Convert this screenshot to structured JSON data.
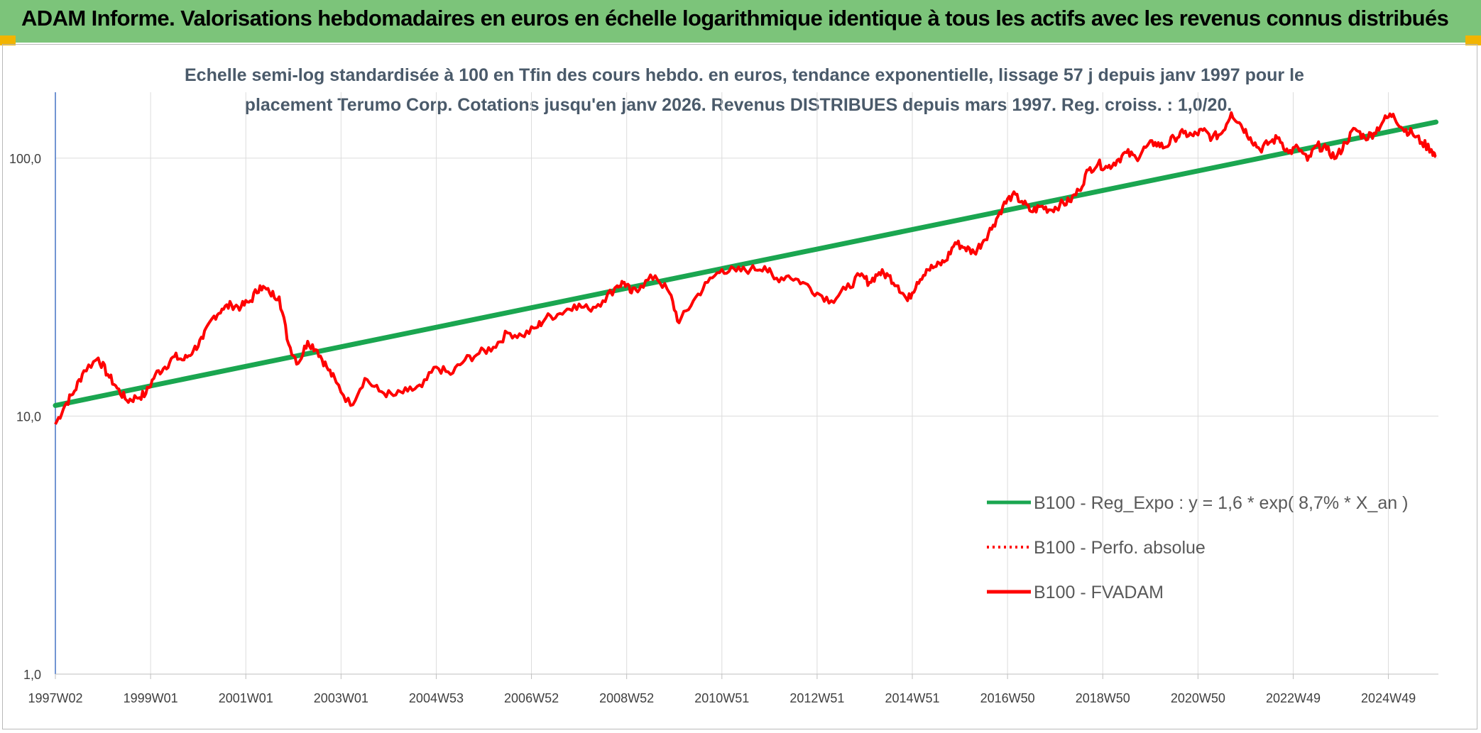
{
  "header": {
    "title": "ADAM Informe. Valorisations hebdomadaires en euros en échelle logarithmique identique à tous les actifs avec les revenus connus distribués"
  },
  "chart_data": {
    "type": "line",
    "title_lines": [
      "Echelle semi-log standardisée à 100 en Tfin des cours hebdo. en euros, tendance exponentielle, lissage 57 j depuis janv 1997 pour le",
      "placement Terumo Corp. Cotations jusqu'en janv 2026. Revenus DISTRIBUES depuis mars 1997. Reg. croiss. : 1,0/20."
    ],
    "y_scale": "log",
    "ylim": [
      1,
      180
    ],
    "y_ticks": [
      {
        "value": 1,
        "label": "1,0"
      },
      {
        "value": 10,
        "label": "10,0"
      },
      {
        "value": 100,
        "label": "100,0"
      }
    ],
    "xlim": [
      1997.0,
      2026.05
    ],
    "x_ticks": [
      {
        "value": 1997.0,
        "label": "1997W02"
      },
      {
        "value": 1999.0,
        "label": "1999W01"
      },
      {
        "value": 2001.0,
        "label": "2001W01"
      },
      {
        "value": 2003.0,
        "label": "2003W01"
      },
      {
        "value": 2005.0,
        "label": "2004W53"
      },
      {
        "value": 2007.0,
        "label": "2006W52"
      },
      {
        "value": 2009.0,
        "label": "2008W52"
      },
      {
        "value": 2011.0,
        "label": "2010W51"
      },
      {
        "value": 2013.0,
        "label": "2012W51"
      },
      {
        "value": 2015.0,
        "label": "2014W51"
      },
      {
        "value": 2017.0,
        "label": "2016W50"
      },
      {
        "value": 2019.0,
        "label": "2018W50"
      },
      {
        "value": 2021.0,
        "label": "2020W50"
      },
      {
        "value": 2023.0,
        "label": "2022W49"
      },
      {
        "value": 2025.0,
        "label": "2024W49"
      }
    ],
    "grid": {
      "vertical": true,
      "horizontal": true
    },
    "legend_position": "bottom-right",
    "series": [
      {
        "name": "B100 - Reg_Expo : y = 1,6 * exp( 8,7% *  X_an )",
        "color": "#1aa650",
        "style": "solid",
        "x": [
          1997.0,
          2026.0
        ],
        "y": [
          11.0,
          138.0
        ]
      },
      {
        "name": "B100 - Perfo. absolue",
        "color": "#ff0000",
        "style": "dotted",
        "x": [],
        "y": []
      },
      {
        "name": "B100 - FVADAM",
        "color": "#ff0000",
        "style": "solid",
        "x": [
          1997.0,
          1997.2,
          1997.4,
          1997.6,
          1997.9,
          1998.1,
          1998.3,
          1998.5,
          1998.7,
          1998.9,
          1999.1,
          1999.3,
          1999.5,
          1999.7,
          1999.9,
          2000.1,
          2000.3,
          2000.5,
          2000.7,
          2000.9,
          2001.1,
          2001.3,
          2001.5,
          2001.7,
          2001.9,
          2002.1,
          2002.3,
          2002.5,
          2002.7,
          2002.9,
          2003.2,
          2003.5,
          2003.8,
          2004.1,
          2004.4,
          2004.7,
          2005.0,
          2005.3,
          2005.6,
          2005.9,
          2006.2,
          2006.5,
          2006.8,
          2007.1,
          2007.3,
          2007.6,
          2007.9,
          2008.2,
          2008.5,
          2008.8,
          2008.95,
          2009.1,
          2009.3,
          2009.6,
          2009.9,
          2010.1,
          2010.4,
          2010.7,
          2011.0,
          2011.3,
          2011.6,
          2011.9,
          2012.1,
          2012.4,
          2012.7,
          2013.0,
          2013.3,
          2013.6,
          2013.9,
          2014.1,
          2014.3,
          2014.5,
          2014.7,
          2014.9,
          2015.1,
          2015.3,
          2015.5,
          2015.7,
          2015.9,
          2016.1,
          2016.3,
          2016.5,
          2016.7,
          2016.9,
          2017.1,
          2017.3,
          2017.5,
          2017.7,
          2017.9,
          2018.1,
          2018.3,
          2018.5,
          2018.7,
          2018.9,
          2019.1,
          2019.3,
          2019.5,
          2019.7,
          2019.9,
          2020.1,
          2020.3,
          2020.5,
          2020.7,
          2020.9,
          2021.1,
          2021.3,
          2021.5,
          2021.7,
          2021.9,
          2022.1,
          2022.3,
          2022.5,
          2022.7,
          2022.9,
          2023.1,
          2023.3,
          2023.5,
          2023.7,
          2023.9,
          2024.1,
          2024.3,
          2024.5,
          2024.7,
          2024.9,
          2025.1,
          2025.3,
          2025.5,
          2025.7,
          2025.9,
          2026.0
        ],
        "y": [
          9.3,
          11.0,
          12.5,
          15.0,
          16.8,
          14.5,
          12.8,
          11.5,
          11.8,
          12.2,
          14.5,
          15.5,
          17.0,
          16.5,
          18.0,
          20.0,
          24.0,
          26.0,
          27.0,
          26.5,
          28.0,
          32.0,
          30.0,
          29.0,
          19.0,
          16.0,
          19.5,
          18.0,
          15.5,
          13.5,
          11.0,
          14.0,
          12.5,
          12.0,
          12.5,
          13.0,
          15.5,
          14.5,
          16.5,
          17.5,
          18.5,
          21.0,
          20.5,
          22.0,
          24.0,
          25.0,
          27.0,
          26.0,
          28.0,
          32.0,
          33.0,
          30.0,
          32.0,
          35.0,
          30.0,
          23.0,
          28.0,
          33.0,
          37.0,
          36.5,
          37.0,
          38.0,
          34.0,
          35.0,
          33.0,
          30.0,
          28.0,
          31.0,
          35.0,
          33.0,
          36.0,
          35.0,
          32.0,
          28.0,
          33.0,
          37.0,
          38.0,
          40.0,
          47.0,
          45.0,
          43.0,
          48.0,
          55.0,
          65.0,
          72.0,
          68.0,
          62.0,
          65.0,
          63.0,
          66.0,
          68.0,
          75.0,
          90.0,
          95.0,
          92.0,
          98.0,
          105.0,
          100.0,
          110.0,
          115.0,
          110.0,
          120.0,
          125.0,
          122.0,
          128.0,
          120.0,
          125.0,
          150.0,
          135.0,
          120.0,
          108.0,
          115.0,
          120.0,
          105.0,
          110.0,
          98.0,
          112.0,
          108.0,
          100.0,
          115.0,
          130.0,
          120.0,
          125.0,
          140.0,
          148.0,
          130.0,
          125.0,
          115.0,
          108.0,
          101.0
        ]
      }
    ]
  }
}
